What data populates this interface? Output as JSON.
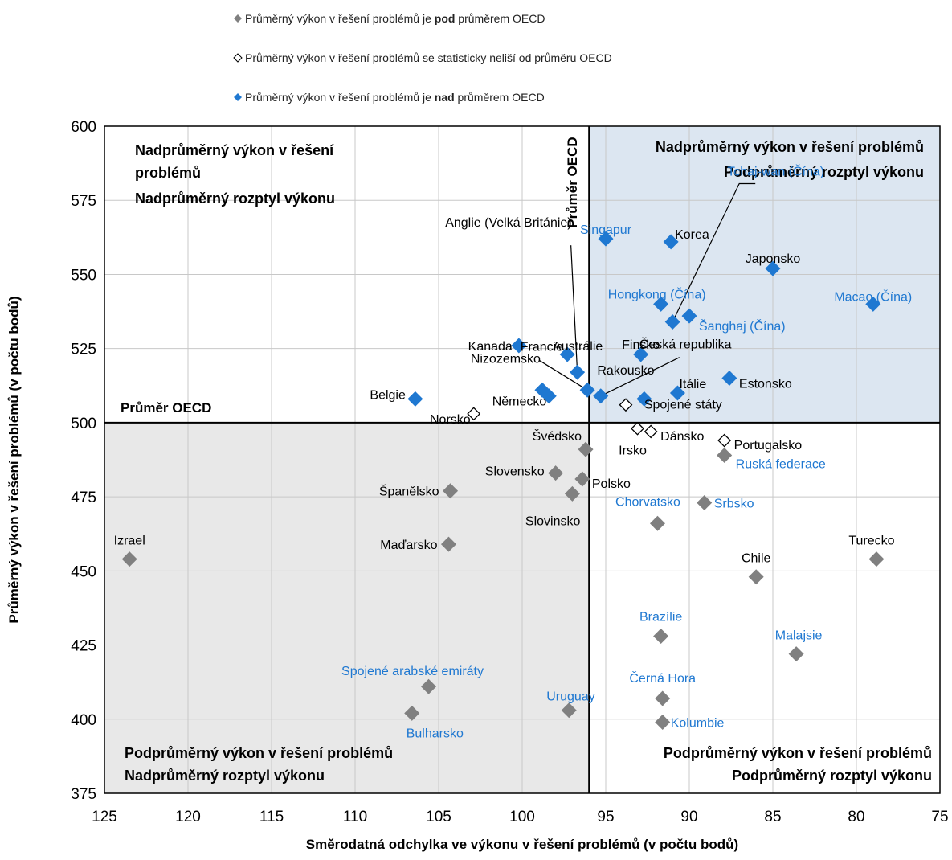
{
  "colors": {
    "below": "#808080",
    "not_significant": "#ffffff",
    "above": "#1f78d1",
    "label_black": "#000000",
    "label_blue": "#1f78d1",
    "quad_blue": "#dce6f1",
    "quad_grey": "#e8e8e8",
    "grid": "#c8c8c8"
  },
  "legend": [
    {
      "status": "below",
      "pre": "Průměrný výkon v řešení problémů je ",
      "bold": "pod",
      "post": " průměrem OECD"
    },
    {
      "status": "not_significant",
      "pre": "Průměrný výkon v řešení problémů se statisticky neliší od průměru OECD",
      "bold": "",
      "post": ""
    },
    {
      "status": "above",
      "pre": "Průměrný výkon v řešení problémů je ",
      "bold": "nad",
      "post": " průměrem OECD"
    }
  ],
  "quadrants": {
    "top_left": [
      "Nadprůměrný výkon v řešení",
      "problémů",
      "Nadprůměrný rozptyl výkonu"
    ],
    "top_right": [
      "Nadprůměrný výkon v řešení problémů",
      "Podprůměrný rozptyl výkonu"
    ],
    "bottom_left": [
      "Podprůměrný výkon v řešení problémů",
      "Nadprůměrný rozptyl výkonu"
    ],
    "bottom_right": [
      "Podprůměrný výkon v řešení problémů",
      "Podprůměrný rozptyl výkonu"
    ]
  },
  "oecd_labels": {
    "horizontal": "Průměr OECD",
    "vertical": "Průměr OECD"
  },
  "chart_data": {
    "type": "scatter",
    "xlabel": "Směrodatná odchylka ve výkonu v řešení problémů (v počtu bodů)",
    "ylabel": "Průměrný výkon v řešení problémů (v počtu bodů)",
    "xlim": [
      125,
      75
    ],
    "ylim": [
      375,
      600
    ],
    "x_reversed": true,
    "xticks": [
      125,
      120,
      115,
      110,
      105,
      100,
      95,
      90,
      85,
      80,
      75
    ],
    "yticks": [
      375,
      400,
      425,
      450,
      475,
      500,
      525,
      550,
      575,
      600
    ],
    "grid": true,
    "legend_position": "top",
    "oecd_average": {
      "x": 96,
      "y": 500
    },
    "points": [
      {
        "name": "Singapur",
        "x": 95.0,
        "y": 562,
        "status": "above",
        "label_color": "blue"
      },
      {
        "name": "Korea",
        "x": 91.1,
        "y": 561,
        "status": "above",
        "label_color": "black"
      },
      {
        "name": "Japonsko",
        "x": 85.0,
        "y": 552,
        "status": "above",
        "label_color": "black"
      },
      {
        "name": "Macao (Čína)",
        "x": 79.0,
        "y": 540,
        "status": "above",
        "label_color": "blue"
      },
      {
        "name": "Hongkong (Čína)",
        "x": 91.7,
        "y": 540,
        "status": "above",
        "label_color": "blue"
      },
      {
        "name": "Šanghaj (Čína)",
        "x": 90.0,
        "y": 536,
        "status": "above",
        "label_color": "blue"
      },
      {
        "name": "Tchaj-wan (Čína)",
        "x": 91.0,
        "y": 534,
        "status": "above",
        "label_color": "blue"
      },
      {
        "name": "Kanada",
        "x": 100.2,
        "y": 526,
        "status": "above",
        "label_color": "black"
      },
      {
        "name": "Austrálie",
        "x": 97.3,
        "y": 523,
        "status": "above",
        "label_color": "black"
      },
      {
        "name": "Finsko",
        "x": 92.9,
        "y": 523,
        "status": "above",
        "label_color": "black"
      },
      {
        "name": "Anglie (Velká Británie)",
        "x": 96.7,
        "y": 517,
        "status": "above",
        "label_color": "black"
      },
      {
        "name": "Estonsko",
        "x": 87.6,
        "y": 515,
        "status": "above",
        "label_color": "black"
      },
      {
        "name": "Francie",
        "x": 96.1,
        "y": 511,
        "status": "above",
        "label_color": "black"
      },
      {
        "name": "Nizozemsko",
        "x": 98.8,
        "y": 511,
        "status": "above",
        "label_color": "black"
      },
      {
        "name": "Itálie",
        "x": 90.7,
        "y": 510,
        "status": "above",
        "label_color": "black"
      },
      {
        "name": "Česká republika",
        "x": 95.3,
        "y": 509,
        "status": "above",
        "label_color": "black"
      },
      {
        "name": "Německo",
        "x": 98.4,
        "y": 509,
        "status": "above",
        "label_color": "black"
      },
      {
        "name": "Spojené státy",
        "x": 92.7,
        "y": 508,
        "status": "above",
        "label_color": "black"
      },
      {
        "name": "Belgie",
        "x": 106.4,
        "y": 508,
        "status": "above",
        "label_color": "black"
      },
      {
        "name": "Rakousko",
        "x": 93.8,
        "y": 506,
        "status": "not_significant",
        "label_color": "black"
      },
      {
        "name": "Norsko",
        "x": 102.9,
        "y": 503,
        "status": "not_significant",
        "label_color": "black"
      },
      {
        "name": "Irsko",
        "x": 93.1,
        "y": 498,
        "status": "not_significant",
        "label_color": "black"
      },
      {
        "name": "Dánsko",
        "x": 92.3,
        "y": 497,
        "status": "not_significant",
        "label_color": "black"
      },
      {
        "name": "Portugalsko",
        "x": 87.9,
        "y": 494,
        "status": "not_significant",
        "label_color": "black"
      },
      {
        "name": "Švédsko",
        "x": 96.2,
        "y": 491,
        "status": "below",
        "label_color": "black"
      },
      {
        "name": "Ruská federace",
        "x": 87.9,
        "y": 489,
        "status": "below",
        "label_color": "blue"
      },
      {
        "name": "Slovensko",
        "x": 98.0,
        "y": 483,
        "status": "below",
        "label_color": "black"
      },
      {
        "name": "Polsko",
        "x": 96.4,
        "y": 481,
        "status": "below",
        "label_color": "black"
      },
      {
        "name": "Španělsko",
        "x": 104.3,
        "y": 477,
        "status": "below",
        "label_color": "black"
      },
      {
        "name": "Slovinsko",
        "x": 97.0,
        "y": 476,
        "status": "below",
        "label_color": "black"
      },
      {
        "name": "Srbsko",
        "x": 89.1,
        "y": 473,
        "status": "below",
        "label_color": "blue"
      },
      {
        "name": "Chorvatsko",
        "x": 91.9,
        "y": 466,
        "status": "below",
        "label_color": "blue"
      },
      {
        "name": "Maďarsko",
        "x": 104.4,
        "y": 459,
        "status": "below",
        "label_color": "black"
      },
      {
        "name": "Turecko",
        "x": 78.8,
        "y": 454,
        "status": "below",
        "label_color": "black"
      },
      {
        "name": "Izrael",
        "x": 123.5,
        "y": 454,
        "status": "below",
        "label_color": "black"
      },
      {
        "name": "Chile",
        "x": 86.0,
        "y": 448,
        "status": "below",
        "label_color": "black"
      },
      {
        "name": "Brazílie",
        "x": 91.7,
        "y": 428,
        "status": "below",
        "label_color": "blue"
      },
      {
        "name": "Malajsie",
        "x": 83.6,
        "y": 422,
        "status": "below",
        "label_color": "blue"
      },
      {
        "name": "Spojené arabské emiráty",
        "x": 105.6,
        "y": 411,
        "status": "below",
        "label_color": "blue"
      },
      {
        "name": "Černá Hora",
        "x": 91.6,
        "y": 407,
        "status": "below",
        "label_color": "blue"
      },
      {
        "name": "Uruguay",
        "x": 97.2,
        "y": 403,
        "status": "below",
        "label_color": "blue"
      },
      {
        "name": "Bulharsko",
        "x": 106.6,
        "y": 402,
        "status": "below",
        "label_color": "blue"
      },
      {
        "name": "Kolumbie",
        "x": 91.6,
        "y": 399,
        "status": "below",
        "label_color": "blue"
      }
    ]
  }
}
